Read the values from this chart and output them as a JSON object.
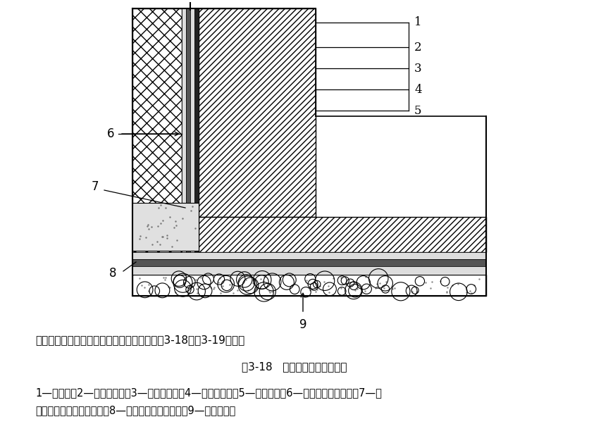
{
  "title": "图3-18   防水涂料外防外涂构造",
  "subtitle": "防水涂料一般采用外防外涂或外防内涂，如图3-18和图3-19所示。",
  "caption_line1": "1—保护墙；2—砂浆保护层；3—涂料防水层；4—砂浆找平层；5—结构墙体；6—涂料防水层加强层；7—涂",
  "caption_line2": "料防水层搭接部位保护层；8—涂料防水层搭接部位；9—混凝土垫层",
  "bg_color": "#ffffff",
  "lc": "#000000"
}
